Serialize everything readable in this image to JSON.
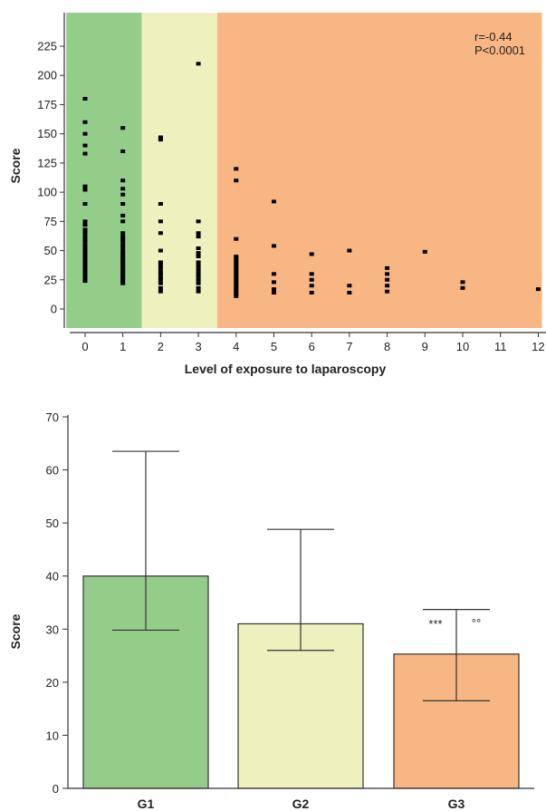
{
  "chart_data": [
    {
      "type": "scatter",
      "xlabel": "Level of exposure to laparoscopy",
      "ylabel": "Score",
      "xlim": [
        -0.5,
        12
      ],
      "ylim": [
        0,
        225
      ],
      "xticks": [
        "0",
        "1",
        "2",
        "3",
        "4",
        "5",
        "6",
        "7",
        "8",
        "9",
        "10",
        "11",
        "12"
      ],
      "yticks": [
        "0",
        "25",
        "50",
        "75",
        "100",
        "125",
        "150",
        "175",
        "200",
        "225"
      ],
      "annotations": [
        "r=-0.44",
        "P<0.0001"
      ],
      "regions": [
        {
          "x_from": -0.5,
          "x_to": 1.5,
          "color": "#94cd8a"
        },
        {
          "x_from": 1.5,
          "x_to": 3.5,
          "color": "#eef1bd"
        },
        {
          "x_from": 3.5,
          "x_to": 12.1,
          "color": "#f7b683"
        }
      ],
      "grid": false,
      "points": [
        {
          "x": 0,
          "y": [
            180,
            160,
            150,
            140,
            133,
            105,
            102,
            90,
            75,
            72,
            68,
            65,
            62,
            60,
            58,
            55,
            52,
            50,
            48,
            46,
            44,
            42,
            40,
            38,
            36,
            34,
            32,
            30,
            28,
            26,
            24
          ]
        },
        {
          "x": 1,
          "y": [
            155,
            135,
            110,
            103,
            98,
            90,
            80,
            75,
            65,
            62,
            60,
            58,
            55,
            53,
            50,
            48,
            46,
            44,
            42,
            40,
            38,
            36,
            34,
            32,
            30,
            28,
            26,
            24,
            22
          ]
        },
        {
          "x": 2,
          "y": [
            147,
            145,
            90,
            75,
            65,
            50,
            40,
            38,
            35,
            32,
            30,
            27,
            25,
            22,
            18,
            15
          ]
        },
        {
          "x": 3,
          "y": [
            210,
            75,
            65,
            62,
            52,
            48,
            45,
            40,
            37,
            34,
            31,
            28,
            25,
            22,
            18,
            15
          ]
        },
        {
          "x": 4,
          "y": [
            120,
            110,
            60,
            45,
            43,
            41,
            39,
            37,
            35,
            33,
            31,
            29,
            27,
            25,
            23,
            21,
            19,
            17,
            15,
            13,
            11
          ]
        },
        {
          "x": 5,
          "y": [
            92,
            54,
            30,
            23,
            17,
            14
          ]
        },
        {
          "x": 6,
          "y": [
            47,
            30,
            25,
            20,
            14
          ]
        },
        {
          "x": 7,
          "y": [
            50,
            20,
            14
          ]
        },
        {
          "x": 8,
          "y": [
            35,
            30,
            25,
            20,
            15
          ]
        },
        {
          "x": 9,
          "y": [
            49
          ]
        },
        {
          "x": 10,
          "y": [
            23,
            18
          ]
        },
        {
          "x": 12,
          "y": [
            17
          ]
        }
      ]
    },
    {
      "type": "bar",
      "ylabel": "Score",
      "ylim": [
        0,
        70
      ],
      "yticks": [
        "0",
        "10",
        "20",
        "30",
        "40",
        "50",
        "60",
        "70"
      ],
      "categories": [
        "G1",
        "G2",
        "G3"
      ],
      "values": [
        40,
        31,
        25.3
      ],
      "error_upper": [
        63.5,
        48.8,
        33.7
      ],
      "error_lower": [
        29.8,
        26,
        16.5
      ],
      "colors": [
        "#94cd8a",
        "#eef1bd",
        "#f7b683"
      ],
      "annotations": [
        {
          "category": "G3",
          "text": "***"
        },
        {
          "category": "G3",
          "text": "°°"
        }
      ]
    }
  ]
}
